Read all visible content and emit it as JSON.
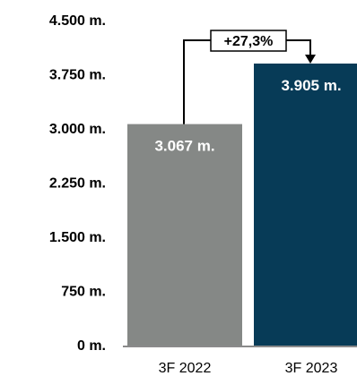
{
  "chart_data": {
    "type": "bar",
    "categories": [
      "3F 2022",
      "3F 2023"
    ],
    "values": [
      3067,
      3905
    ],
    "value_labels": [
      "3.067 m.",
      "3.905 m."
    ],
    "ylim": [
      0,
      4500
    ],
    "yticks": [
      0,
      750,
      1500,
      2250,
      3000,
      3750,
      4500
    ],
    "ytick_labels": [
      "0 m.",
      "750 m.",
      "1.500 m.",
      "2.250 m.",
      "3.000 m.",
      "3.750 m.",
      "4.500 m."
    ],
    "grid": false,
    "change_annotation": "+27,3%",
    "colors": [
      "#858886",
      "#073b57"
    ]
  }
}
